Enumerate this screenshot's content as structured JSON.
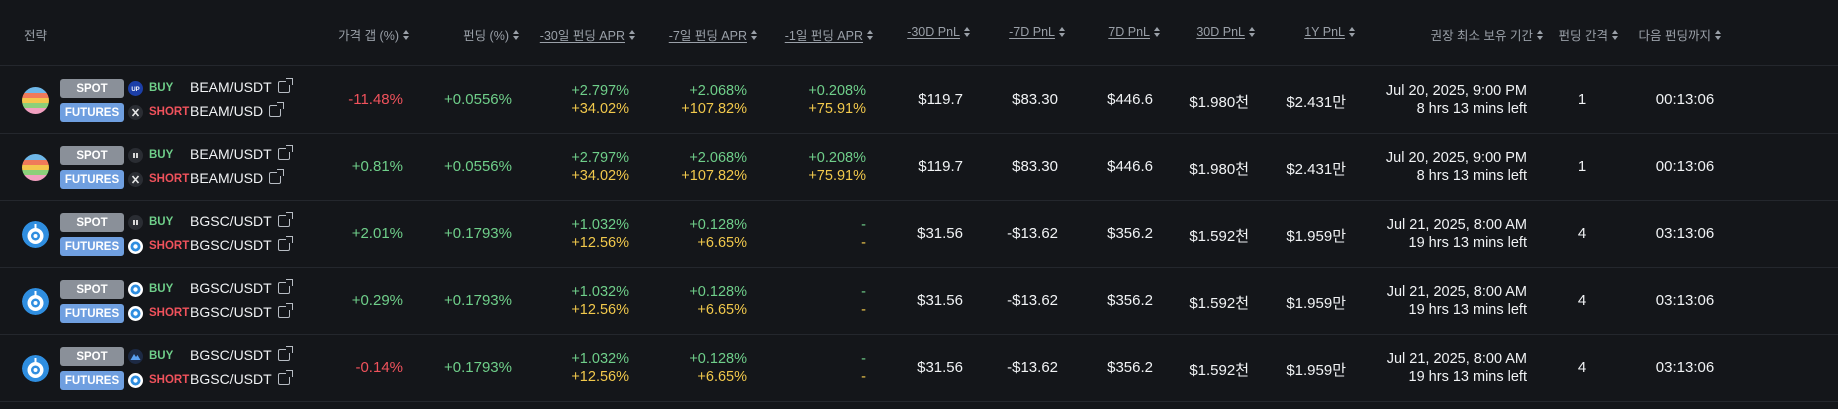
{
  "header": {
    "strategy": "전략",
    "price_gap": "가격 갭 (%)",
    "funding": "펀딩 (%)",
    "apr30": "-30일 펀딩 APR",
    "apr7": "-7일 펀딩 APR",
    "apr1": "-1일 펀딩 APR",
    "pnl30": "-30D PnL",
    "pnl7": "-7D PnL",
    "pnl7f": "7D PnL",
    "pnl30f": "30D PnL",
    "pnl1y": "1Y PnL",
    "hold": "권장 최소 보유 기간",
    "interval": "펀딩 간격",
    "next": "다음 펀딩까지"
  },
  "colors": {
    "green": "#6fcf8a",
    "red": "#f0525c",
    "yellow": "#f2c94c",
    "spot_tag": "#8a9099",
    "futures_tag": "#6f9fe0"
  },
  "rows": [
    {
      "coin_icon": "beam-coin-icon",
      "spot": {
        "tag": "SPOT",
        "exchange_icon": "upbit-icon",
        "side": "BUY",
        "pair": "BEAM/USDT"
      },
      "futures": {
        "tag": "FUTURES",
        "exchange_icon": "x-exchange-icon",
        "side": "SHORT",
        "pair": "BEAM/USD"
      },
      "price_gap": "-11.48%",
      "gap_color": "red",
      "funding": "+0.0556%",
      "apr30": "+2.797%",
      "apr30_b": "+34.02%",
      "apr7": "+2.068%",
      "apr7_b": "+107.82%",
      "apr1": "+0.208%",
      "apr1_b": "+75.91%",
      "pnl30": "$119.7",
      "pnl7": "$83.30",
      "pnl7f": "$446.6",
      "pnl30f": "$1.980천",
      "pnl1y": "$2.431만",
      "hold_date": "Jul 20, 2025, 9:00 PM",
      "hold_left": "8 hrs 13 mins left",
      "interval": "1",
      "next": "00:13:06"
    },
    {
      "coin_icon": "beam-coin-icon",
      "spot": {
        "tag": "SPOT",
        "exchange_icon": "exchange-icon",
        "side": "BUY",
        "pair": "BEAM/USDT"
      },
      "futures": {
        "tag": "FUTURES",
        "exchange_icon": "x-exchange-icon",
        "side": "SHORT",
        "pair": "BEAM/USD"
      },
      "price_gap": "+0.81%",
      "gap_color": "green",
      "funding": "+0.0556%",
      "apr30": "+2.797%",
      "apr30_b": "+34.02%",
      "apr7": "+2.068%",
      "apr7_b": "+107.82%",
      "apr1": "+0.208%",
      "apr1_b": "+75.91%",
      "pnl30": "$119.7",
      "pnl7": "$83.30",
      "pnl7f": "$446.6",
      "pnl30f": "$1.980천",
      "pnl1y": "$2.431만",
      "hold_date": "Jul 20, 2025, 9:00 PM",
      "hold_left": "8 hrs 13 mins left",
      "interval": "1",
      "next": "00:13:06"
    },
    {
      "coin_icon": "bgsc-coin-icon",
      "spot": {
        "tag": "SPOT",
        "exchange_icon": "exchange-icon",
        "side": "BUY",
        "pair": "BGSC/USDT"
      },
      "futures": {
        "tag": "FUTURES",
        "exchange_icon": "bgsc-exchange-icon",
        "side": "SHORT",
        "pair": "BGSC/USDT"
      },
      "price_gap": "+2.01%",
      "gap_color": "green",
      "funding": "+0.1793%",
      "apr30": "+1.032%",
      "apr30_b": "+12.56%",
      "apr7": "+0.128%",
      "apr7_b": "+6.65%",
      "apr1": "-",
      "apr1_b": "-",
      "pnl30": "$31.56",
      "pnl7": "-$13.62",
      "pnl7f": "$356.2",
      "pnl30f": "$1.592천",
      "pnl1y": "$1.959만",
      "hold_date": "Jul 21, 2025, 8:00 AM",
      "hold_left": "19 hrs 13 mins left",
      "interval": "4",
      "next": "03:13:06"
    },
    {
      "coin_icon": "bgsc-coin-icon",
      "spot": {
        "tag": "SPOT",
        "exchange_icon": "bgsc-exchange-icon",
        "side": "BUY",
        "pair": "BGSC/USDT"
      },
      "futures": {
        "tag": "FUTURES",
        "exchange_icon": "bgsc-exchange-icon",
        "side": "SHORT",
        "pair": "BGSC/USDT"
      },
      "price_gap": "+0.29%",
      "gap_color": "green",
      "funding": "+0.1793%",
      "apr30": "+1.032%",
      "apr30_b": "+12.56%",
      "apr7": "+0.128%",
      "apr7_b": "+6.65%",
      "apr1": "-",
      "apr1_b": "-",
      "pnl30": "$31.56",
      "pnl7": "-$13.62",
      "pnl7f": "$356.2",
      "pnl30f": "$1.592천",
      "pnl1y": "$1.959만",
      "hold_date": "Jul 21, 2025, 8:00 AM",
      "hold_left": "19 hrs 13 mins left",
      "interval": "4",
      "next": "03:13:06"
    },
    {
      "coin_icon": "bgsc-coin-icon",
      "spot": {
        "tag": "SPOT",
        "exchange_icon": "mountain-exchange-icon",
        "side": "BUY",
        "pair": "BGSC/USDT"
      },
      "futures": {
        "tag": "FUTURES",
        "exchange_icon": "bgsc-exchange-icon",
        "side": "SHORT",
        "pair": "BGSC/USDT"
      },
      "price_gap": "-0.14%",
      "gap_color": "red",
      "funding": "+0.1793%",
      "apr30": "+1.032%",
      "apr30_b": "+12.56%",
      "apr7": "+0.128%",
      "apr7_b": "+6.65%",
      "apr1": "-",
      "apr1_b": "-",
      "pnl30": "$31.56",
      "pnl7": "-$13.62",
      "pnl7f": "$356.2",
      "pnl30f": "$1.592천",
      "pnl1y": "$1.959만",
      "hold_date": "Jul 21, 2025, 8:00 AM",
      "hold_left": "19 hrs 13 mins left",
      "interval": "4",
      "next": "03:13:06"
    }
  ]
}
